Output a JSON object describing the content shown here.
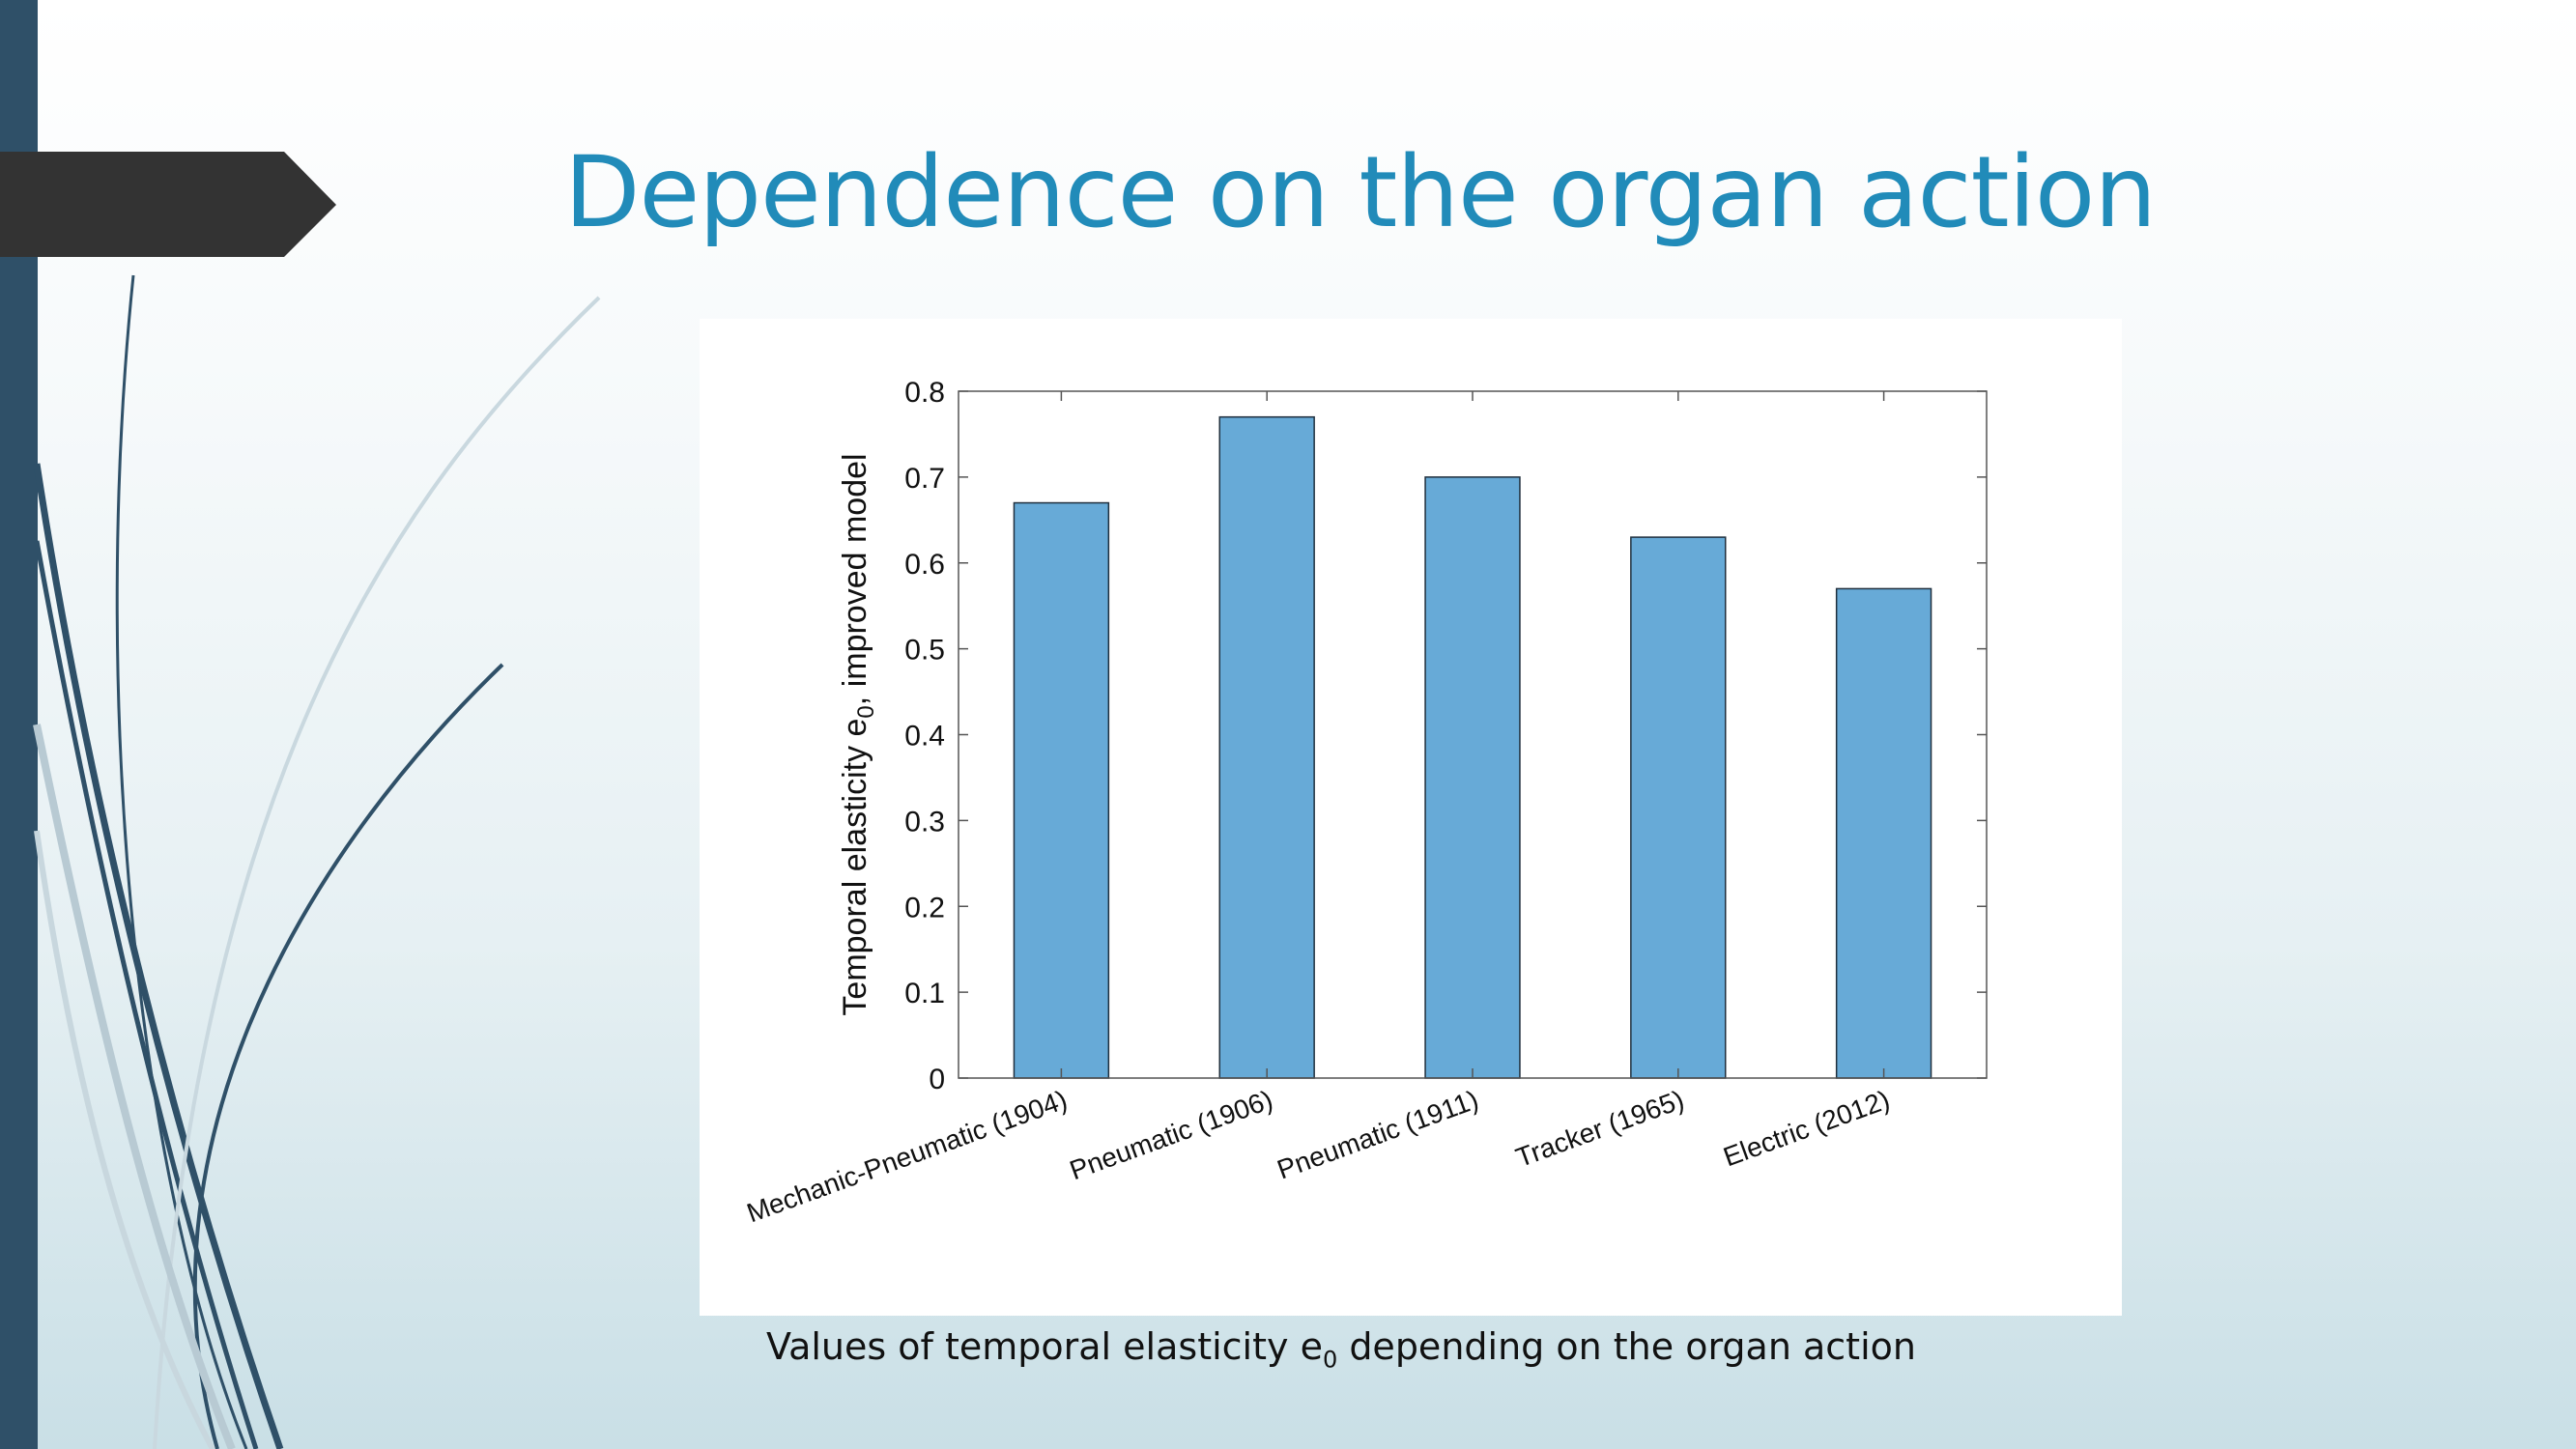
{
  "slide": {
    "title": "Dependence on the organ action",
    "caption_before": "Values of temporal elasticity e",
    "caption_sub": "0",
    "caption_after": " depending on the organ action"
  },
  "colors": {
    "title": "#218bb9",
    "bar_fill": "#67aad7",
    "bar_edge": "#1f2f3d",
    "left_bar": "#2f5068",
    "arrow_tab": "#333333"
  },
  "chart_data": {
    "type": "bar",
    "categories": [
      "Mechanic-Pneumatic (1904)",
      "Pneumatic (1906)",
      "Pneumatic (1911)",
      "Tracker (1965)",
      "Electric (2012)"
    ],
    "values": [
      0.67,
      0.77,
      0.7,
      0.63,
      0.57
    ],
    "ylabel_before": "Temporal elasticity e",
    "ylabel_sub": "0",
    "ylabel_after": ", improved model",
    "xlabel": "",
    "ylim": [
      0,
      0.8
    ],
    "yticks": [
      "0",
      "0.1",
      "0.2",
      "0.3",
      "0.4",
      "0.5",
      "0.6",
      "0.7",
      "0.8"
    ],
    "grid": false,
    "legend": "none"
  }
}
